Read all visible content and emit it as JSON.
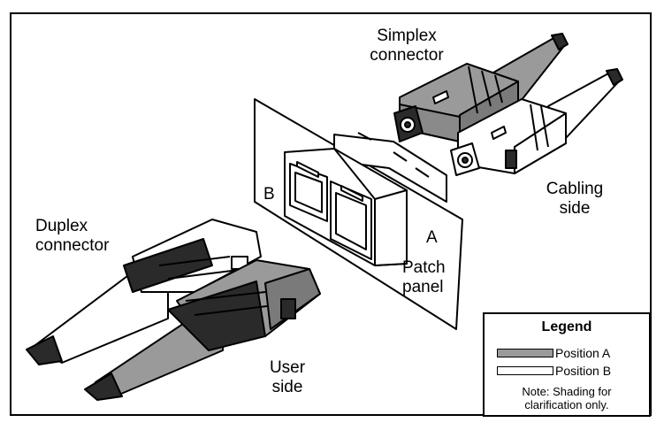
{
  "labels": {
    "simplex_connector": [
      "Simplex",
      "connector"
    ],
    "cabling_side": [
      "Cabling",
      "side"
    ],
    "duplex_connector": [
      "Duplex",
      "connector"
    ],
    "user_side": [
      "User",
      "side"
    ],
    "patch_panel": [
      "Patch",
      "panel"
    ],
    "port_b": "B",
    "port_a": "A"
  },
  "legend": {
    "title": "Legend",
    "items": [
      {
        "label": "Position A",
        "color": "#9a9a9a"
      },
      {
        "label": "Position B",
        "color": "#ffffff"
      }
    ],
    "note": [
      "Note:  Shading for",
      "clarification only."
    ]
  },
  "colors": {
    "shade_a": "#9a9a9a",
    "shade_dark": "#2a2a2a",
    "outline": "#000000"
  }
}
